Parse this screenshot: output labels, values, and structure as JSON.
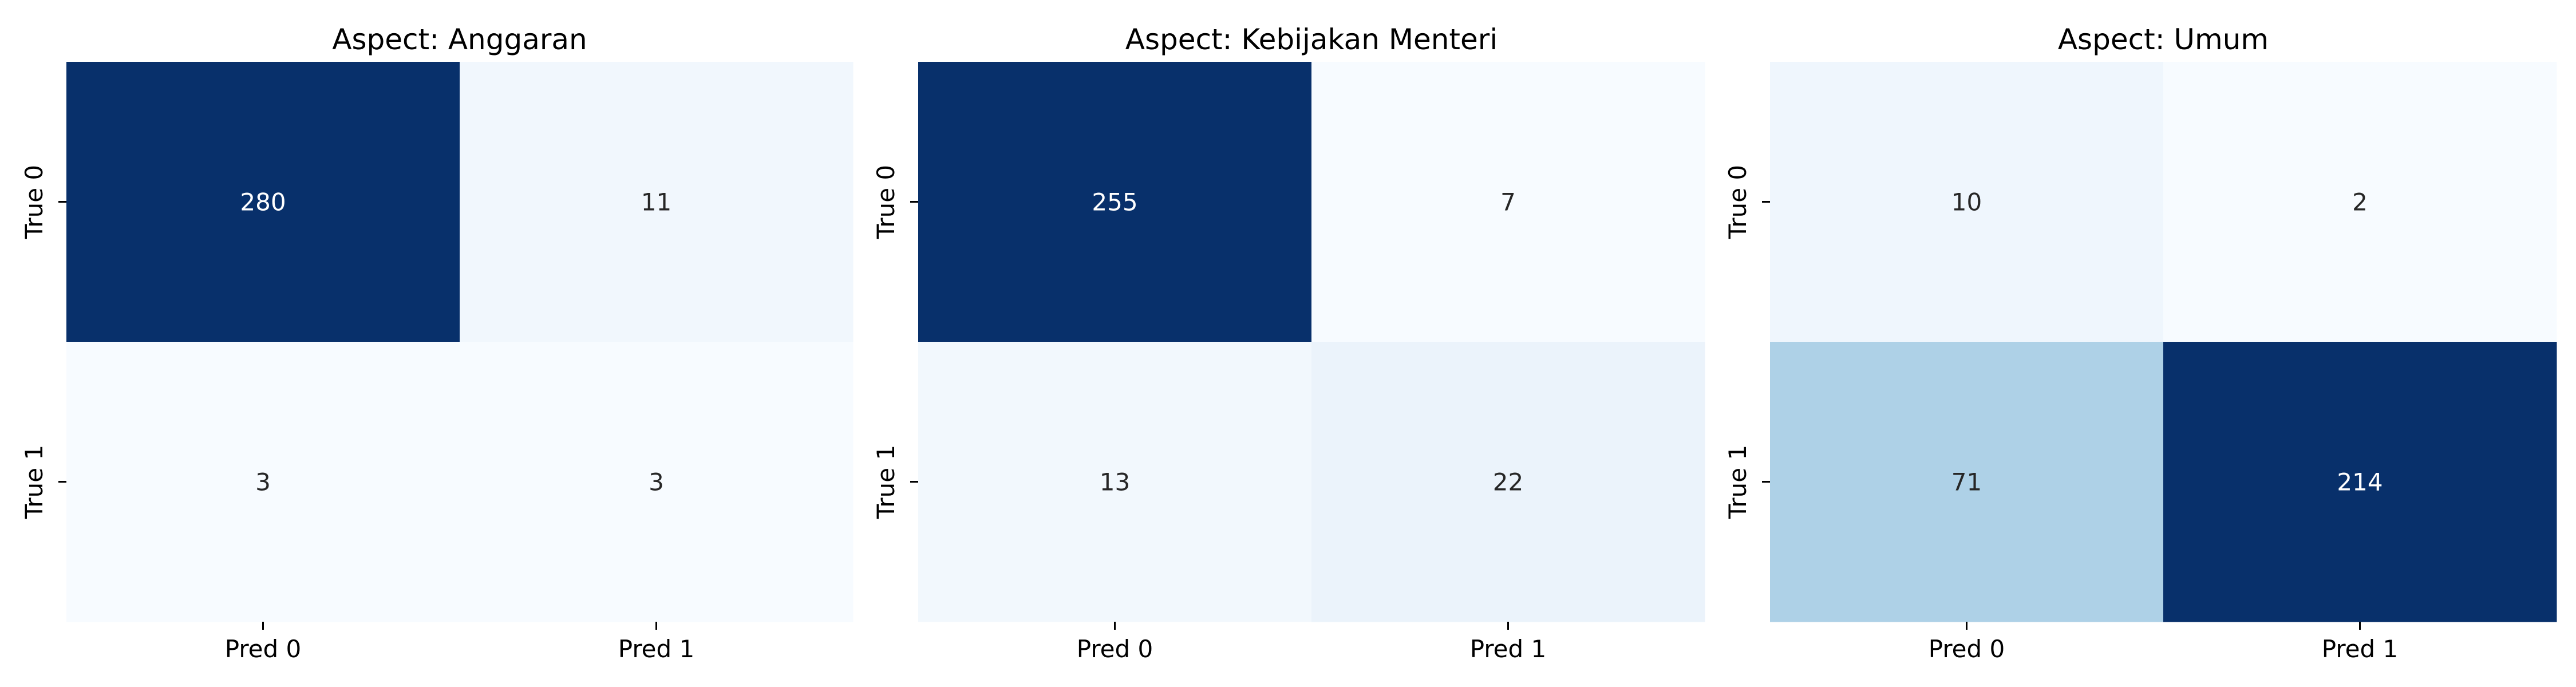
{
  "chart_data": [
    {
      "type": "heatmap",
      "title": "Aspect: Anggaran",
      "rows": [
        "True 0",
        "True 1"
      ],
      "columns": [
        "Pred 0",
        "Pred 1"
      ],
      "values": [
        [
          280,
          11
        ],
        [
          3,
          3
        ]
      ],
      "colormap": "Blues",
      "annotations": true,
      "colorbar": false
    },
    {
      "type": "heatmap",
      "title": "Aspect: Kebijakan Menteri",
      "rows": [
        "True 0",
        "True 1"
      ],
      "columns": [
        "Pred 0",
        "Pred 1"
      ],
      "values": [
        [
          255,
          7
        ],
        [
          13,
          22
        ]
      ],
      "colormap": "Blues",
      "annotations": true,
      "colorbar": false
    },
    {
      "type": "heatmap",
      "title": "Aspect: Umum",
      "rows": [
        "True 0",
        "True 1"
      ],
      "columns": [
        "Pred 0",
        "Pred 1"
      ],
      "values": [
        [
          10,
          2
        ],
        [
          71,
          214
        ]
      ],
      "colormap": "Blues",
      "annotations": true,
      "colorbar": false
    }
  ],
  "colors": {
    "blues_low": "#f7fbff",
    "blues_high": "#08306b",
    "text_dark": "#262626",
    "text_light": "#ffffff",
    "axis": "#000000"
  }
}
